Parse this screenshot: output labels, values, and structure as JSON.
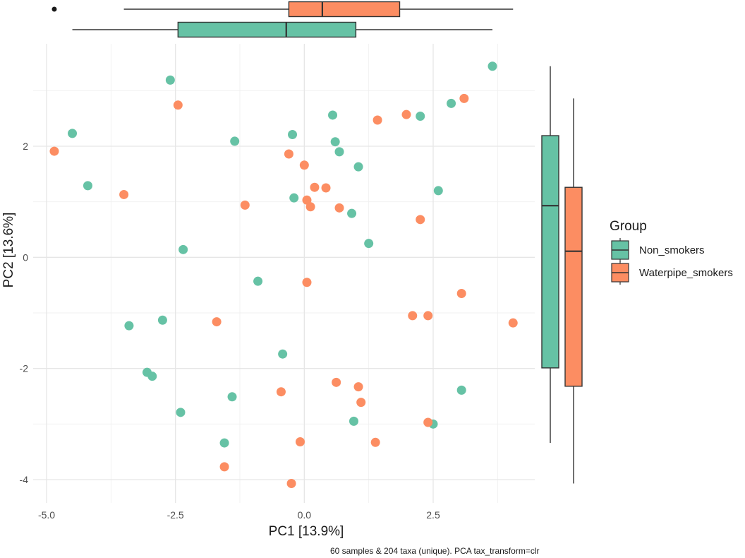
{
  "chart_data": {
    "type": "scatter",
    "xlabel": "PC1 [13.9%]",
    "ylabel": "PC2 [13.6%]",
    "caption": "60 samples & 204 taxa (unique). PCA tax_transform=clr",
    "xlim": [
      -5.0,
      4.5
    ],
    "ylim": [
      -4.3,
      3.7
    ],
    "x_ticks": [
      -5.0,
      -2.5,
      0.0,
      2.5
    ],
    "x_tick_labels": [
      "-5.0",
      "-2.5",
      "0.0",
      "2.5"
    ],
    "y_ticks": [
      -4,
      -2,
      0,
      2
    ],
    "y_tick_labels": [
      "-4",
      "-2",
      "0",
      "2"
    ],
    "legend": {
      "title": "Group",
      "position": "right",
      "entries": [
        "Non_smokers",
        "Waterpipe_smokers"
      ]
    },
    "series": [
      {
        "name": "Non_smokers",
        "color": "#66c2a5",
        "points": [
          {
            "x": -4.5,
            "y": 2.23
          },
          {
            "x": -4.2,
            "y": 1.29
          },
          {
            "x": -3.4,
            "y": -1.23
          },
          {
            "x": -3.05,
            "y": -2.07
          },
          {
            "x": -2.95,
            "y": -2.14
          },
          {
            "x": -2.75,
            "y": -1.13
          },
          {
            "x": -2.6,
            "y": 3.19
          },
          {
            "x": -2.4,
            "y": -2.79
          },
          {
            "x": -2.35,
            "y": 0.14
          },
          {
            "x": -1.35,
            "y": 2.09
          },
          {
            "x": -1.4,
            "y": -2.51
          },
          {
            "x": -1.55,
            "y": -3.34
          },
          {
            "x": -0.9,
            "y": -0.43
          },
          {
            "x": -0.42,
            "y": -1.74
          },
          {
            "x": -0.23,
            "y": 2.21
          },
          {
            "x": -0.2,
            "y": 1.07
          },
          {
            "x": 0.55,
            "y": 2.56
          },
          {
            "x": 0.6,
            "y": 2.08
          },
          {
            "x": 0.68,
            "y": 1.9
          },
          {
            "x": 0.92,
            "y": 0.79
          },
          {
            "x": 1.05,
            "y": 1.63
          },
          {
            "x": 0.96,
            "y": -2.95
          },
          {
            "x": 1.25,
            "y": 0.25
          },
          {
            "x": 2.25,
            "y": 2.54
          },
          {
            "x": 2.5,
            "y": -3.0
          },
          {
            "x": 2.6,
            "y": 1.2
          },
          {
            "x": 2.85,
            "y": 2.77
          },
          {
            "x": 3.05,
            "y": -2.39
          },
          {
            "x": 3.65,
            "y": 3.44
          }
        ]
      },
      {
        "name": "Waterpipe_smokers",
        "color": "#fc8d62",
        "points": [
          {
            "x": -4.85,
            "y": 1.91
          },
          {
            "x": -3.5,
            "y": 1.13
          },
          {
            "x": -2.45,
            "y": 2.74
          },
          {
            "x": -1.7,
            "y": -1.16
          },
          {
            "x": -1.55,
            "y": -3.77
          },
          {
            "x": -1.15,
            "y": 0.94
          },
          {
            "x": -0.45,
            "y": -2.42
          },
          {
            "x": -0.3,
            "y": 1.86
          },
          {
            "x": -0.25,
            "y": -4.07
          },
          {
            "x": -0.08,
            "y": -3.32
          },
          {
            "x": 0.0,
            "y": 1.66
          },
          {
            "x": 0.05,
            "y": 1.03
          },
          {
            "x": 0.05,
            "y": -0.45
          },
          {
            "x": 0.12,
            "y": 0.91
          },
          {
            "x": 0.2,
            "y": 1.26
          },
          {
            "x": 0.42,
            "y": 1.25
          },
          {
            "x": 0.62,
            "y": -2.25
          },
          {
            "x": 0.68,
            "y": 0.89
          },
          {
            "x": 1.05,
            "y": -2.33
          },
          {
            "x": 1.1,
            "y": -2.61
          },
          {
            "x": 1.38,
            "y": -3.33
          },
          {
            "x": 1.42,
            "y": 2.47
          },
          {
            "x": 1.98,
            "y": 2.57
          },
          {
            "x": 2.1,
            "y": -1.05
          },
          {
            "x": 2.25,
            "y": 0.68
          },
          {
            "x": 2.4,
            "y": -1.05
          },
          {
            "x": 2.4,
            "y": -2.97
          },
          {
            "x": 3.05,
            "y": -0.65
          },
          {
            "x": 3.1,
            "y": 2.86
          },
          {
            "x": 4.05,
            "y": -1.18
          }
        ]
      }
    ],
    "boxplots_x": [
      {
        "name": "Waterpipe_smokers",
        "color": "#fc8d62",
        "min": -3.5,
        "q1": -0.3,
        "median": 0.35,
        "q3": 1.85,
        "max": 4.05,
        "outliers": [
          -4.85
        ]
      },
      {
        "name": "Non_smokers",
        "color": "#66c2a5",
        "min": -4.5,
        "q1": -2.45,
        "median": -0.35,
        "q3": 1.0,
        "max": 3.65,
        "outliers": []
      }
    ],
    "boxplots_y": [
      {
        "name": "Non_smokers",
        "color": "#66c2a5",
        "min": -3.34,
        "q1": -1.99,
        "median": 0.93,
        "q3": 2.19,
        "max": 3.44,
        "outliers": []
      },
      {
        "name": "Waterpipe_smokers",
        "color": "#fc8d62",
        "min": -4.07,
        "q1": -2.32,
        "median": 0.11,
        "q3": 1.26,
        "max": 2.86,
        "outliers": []
      }
    ]
  }
}
